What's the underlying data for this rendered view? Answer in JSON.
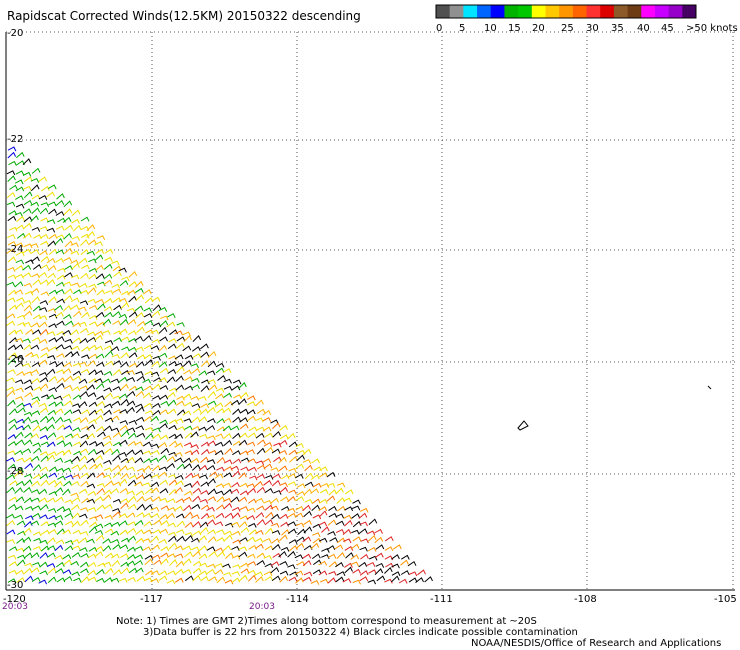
{
  "title": "Rapidscat Corrected Winds(12.5KM) 20150322 descending",
  "legend": {
    "labels": [
      "0",
      "5",
      "10",
      "15",
      "20",
      "25",
      "30",
      "35",
      "40",
      "45",
      ">50 knots"
    ],
    "colors": [
      "#505050",
      "#909090",
      "#00e4ff",
      "#0064ff",
      "#0000ff",
      "#00b400",
      "#00c800",
      "#ffff00",
      "#ffc800",
      "#ff9600",
      "#ff6400",
      "#ff3232",
      "#dc0000",
      "#8c5a28",
      "#6e3c14",
      "#ff00ff",
      "#c800ff",
      "#9600c8",
      "#460064"
    ]
  },
  "map": {
    "lat_labels": [
      "-20",
      "-22",
      "-24",
      "-26",
      "-28",
      "-30"
    ],
    "lon_labels": [
      "-120",
      "-117",
      "-114",
      "-111",
      "-108",
      "-105"
    ],
    "time_labels": [
      "20:03",
      "20:03"
    ]
  },
  "notes": {
    "line1": "Note: 1) Times are GMT 2)Times along bottom correspond to measurement at ~20S",
    "line2": "3)Data buffer is 22 hrs from 20150322 4) Black circles indicate possible contamination",
    "credit": "NOAA/NESDIS/Office of Research and Applications"
  }
}
